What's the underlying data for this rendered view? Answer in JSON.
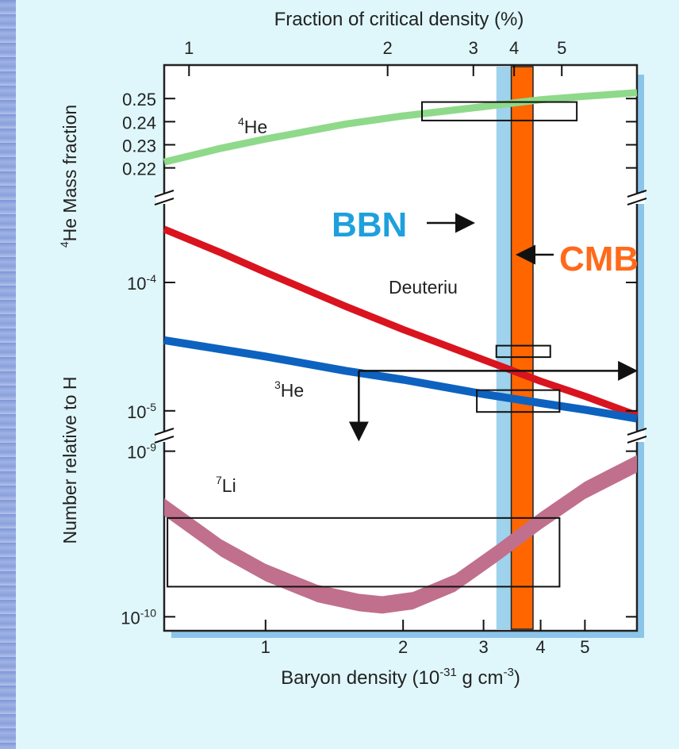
{
  "chart_data": {
    "type": "line",
    "x_scale": "log",
    "xlabel": "Baryon density (10-31 g cm-3)",
    "xlabel_parts": {
      "base": "Baryon density (10",
      "exp1": "-31",
      "mid": " g cm",
      "exp2": "-3",
      "end": ")"
    },
    "top_xlabel": "Fraction of critical density (%)",
    "x_range": [
      0.6,
      6.5
    ],
    "x_ticks": [
      1,
      2,
      3,
      4,
      5
    ],
    "top_x_ticks": [
      1,
      2,
      3,
      4,
      5
    ],
    "top_x_tick_positions_in_baryon_density": [
      0.68,
      1.85,
      2.85,
      3.5,
      4.45
    ],
    "panels": [
      {
        "name": "helium-4",
        "ylabel_sup": "4",
        "ylabel": "He Mass fraction",
        "y_scale": "linear",
        "y_range": [
          0.213,
          0.259
        ],
        "y_ticks": [
          "0.25",
          "0.24",
          "0.23",
          "0.22"
        ],
        "y_tick_values": [
          0.25,
          0.24,
          0.23,
          0.22
        ],
        "series": [
          {
            "label_sup": "4",
            "label": "He",
            "color": "#8fd98a",
            "points": [
              [
                0.6,
                0.2225
              ],
              [
                0.8,
                0.2285
              ],
              [
                1.0,
                0.2325
              ],
              [
                1.5,
                0.239
              ],
              [
                2.0,
                0.2425
              ],
              [
                3.0,
                0.2465
              ],
              [
                4.0,
                0.2495
              ],
              [
                5.0,
                0.251
              ],
              [
                6.5,
                0.2525
              ]
            ]
          }
        ],
        "boxes": [
          {
            "x": [
              2.2,
              4.8
            ],
            "y": [
              0.2405,
              0.2485
            ]
          }
        ]
      },
      {
        "name": "deuterium-helium-3",
        "ylabel": "Number relative to H",
        "y_scale": "log",
        "y_range": [
          7.5e-06,
          0.00035
        ],
        "y_ticks": [
          "10-4",
          "10-5"
        ],
        "y_tick_values": [
          0.0001,
          1e-05
        ],
        "series": [
          {
            "label": "Deuteriu",
            "color": "#d9141f",
            "points": [
              [
                0.6,
                0.00026
              ],
              [
                0.8,
                0.00017
              ],
              [
                1.0,
                0.00012
              ],
              [
                1.5,
                6.5e-05
              ],
              [
                2.0,
                4.3e-05
              ],
              [
                3.0,
                2.5e-05
              ],
              [
                4.0,
                1.7e-05
              ],
              [
                5.0,
                1.3e-05
              ],
              [
                6.5,
                9.2e-06
              ]
            ]
          },
          {
            "label_sup": "3",
            "label": "He",
            "color": "#0d62c0",
            "points": [
              [
                0.6,
                3.55e-05
              ],
              [
                1.0,
                2.65e-05
              ],
              [
                1.5,
                2.05e-05
              ],
              [
                2.0,
                1.75e-05
              ],
              [
                3.0,
                1.35e-05
              ],
              [
                4.0,
                1.15e-05
              ],
              [
                5.0,
                1.02e-05
              ],
              [
                6.5,
                8.7e-06
              ]
            ]
          }
        ],
        "boxes": [
          {
            "x": [
              3.2,
              4.2
            ],
            "y": [
              2.62e-05,
              3.22e-05
            ]
          },
          {
            "x": [
              2.9,
              4.4
            ],
            "y": [
              9.8e-06,
              1.45e-05
            ]
          }
        ],
        "arrows": [
          {
            "from": [
              1.6,
              2.05e-05
            ],
            "to": [
              6.4,
              2.05e-05
            ]
          },
          {
            "from": [
              1.6,
              2.05e-05
            ],
            "to": [
              1.6,
              6.2e-06
            ]
          }
        ]
      },
      {
        "name": "lithium-7",
        "y_scale": "log",
        "y_range": [
          9.5e-11,
          1.1e-09
        ],
        "y_ticks": [
          "10-9",
          "10-10"
        ],
        "y_tick_values": [
          1e-09,
          1e-10
        ],
        "series": [
          {
            "label_sup": "7",
            "label": "Li",
            "color": "#c0708c",
            "band": true,
            "points": [
              [
                0.6,
                4.6e-10
              ],
              [
                0.8,
                2.6e-10
              ],
              [
                1.0,
                1.85e-10
              ],
              [
                1.3,
                1.38e-10
              ],
              [
                1.6,
                1.22e-10
              ],
              [
                1.8,
                1.18e-10
              ],
              [
                2.1,
                1.25e-10
              ],
              [
                2.6,
                1.6e-10
              ],
              [
                3.2,
                2.4e-10
              ],
              [
                4.0,
                3.8e-10
              ],
              [
                5.0,
                5.8e-10
              ],
              [
                6.5,
                8.4e-10
              ]
            ]
          }
        ],
        "boxes": [
          {
            "x": [
              0.61,
              4.4
            ],
            "y": [
              1.52e-10,
              3.95e-10
            ]
          }
        ]
      }
    ],
    "vertical_bands": [
      {
        "label": "BBN",
        "x": [
          3.2,
          3.55
        ],
        "color": "#9fd2ec",
        "label_color": "#1ea0dc"
      },
      {
        "label": "CMB",
        "x": [
          3.45,
          3.85
        ],
        "color": "#ff6600",
        "label_color": "#ff6a1a"
      }
    ]
  }
}
